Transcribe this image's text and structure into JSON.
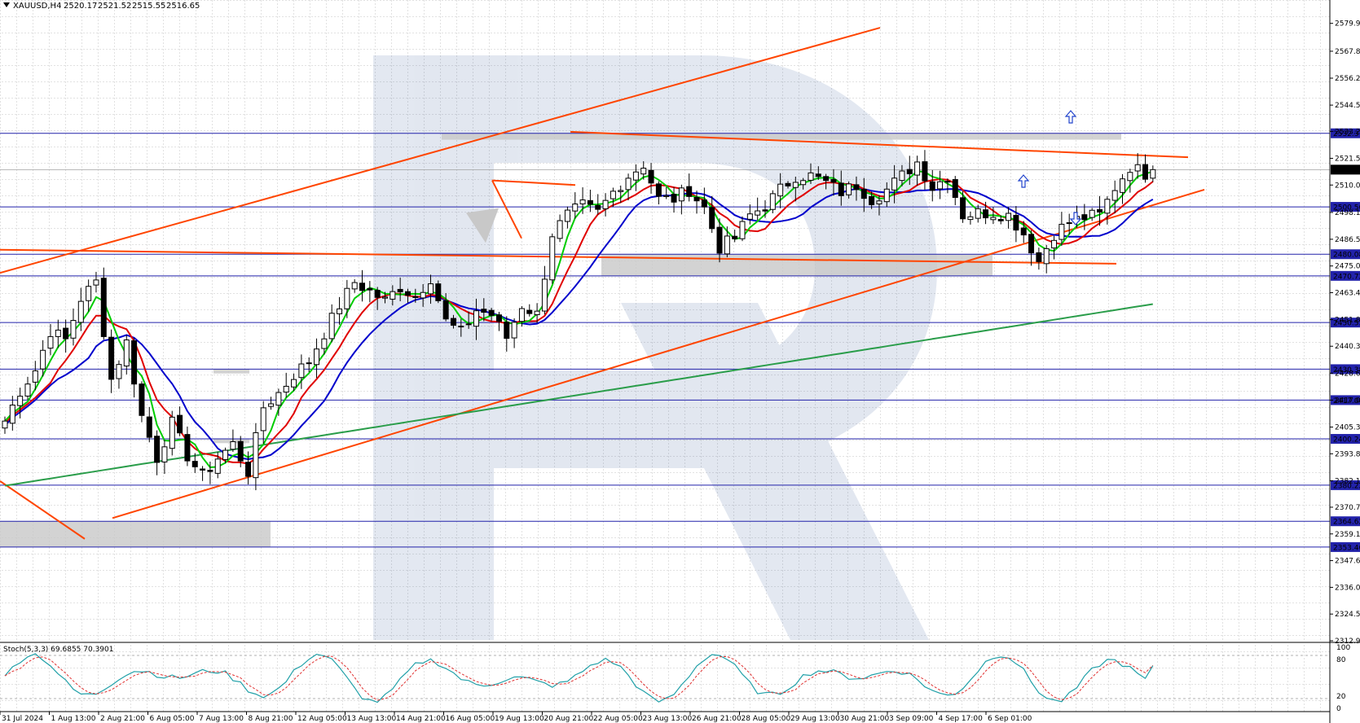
{
  "header": {
    "symbol": "XAUUSD,H4",
    "open": "2520.17",
    "high": "2521.52",
    "low": "2515.55",
    "close": "2516.65"
  },
  "stoch": {
    "label": "Stoch(5,3,3) 69.6855 70.3901",
    "axis_labels": [
      "100",
      "80",
      "20",
      "0"
    ]
  },
  "colors": {
    "candle": "#000000",
    "ma_fast": "#00cc00",
    "ma_mid": "#e00000",
    "ma_slow": "#0000cc",
    "ma_long": "#2a9d4a",
    "trend": "#ff4500",
    "level": "#2222aa",
    "zone": "#c8c8c8",
    "current": "#000000",
    "stoch_main": "#20a0a8",
    "stoch_signal": "#e03030"
  },
  "chart_data": {
    "type": "candlestick",
    "ylim": [
      2312.95,
      2590.0
    ],
    "y_ticks": [
      "2579.90",
      "2567.85",
      "2556.20",
      "2544.55",
      "2533.20",
      "2521.55",
      "2510.00",
      "2498.15",
      "2486.55",
      "2475.00",
      "2463.45",
      "2451.80",
      "2440.30",
      "2428.65",
      "2417.00",
      "2405.35",
      "2393.80",
      "2382.15",
      "2370.70",
      "2359.15",
      "2347.60",
      "2336.05",
      "2324.50",
      "2312.95"
    ],
    "x_ticks": [
      "31 Jul 2024",
      "1 Aug 13:00",
      "2 Aug 21:00",
      "6 Aug 05:00",
      "7 Aug 13:00",
      "8 Aug 21:00",
      "12 Aug 05:00",
      "13 Aug 13:00",
      "14 Aug 21:00",
      "16 Aug 05:00",
      "19 Aug 13:00",
      "20 Aug 21:00",
      "22 Aug 05:00",
      "23 Aug 13:00",
      "26 Aug 21:00",
      "28 Aug 05:00",
      "29 Aug 13:00",
      "30 Aug 21:00",
      "3 Sep 09:00",
      "4 Sep 17:00",
      "6 Sep 01:00"
    ],
    "levels": [
      {
        "label": "2532.37",
        "value": 2532.37
      },
      {
        "label": "2500.56",
        "value": 2500.56
      },
      {
        "label": "2480.08",
        "value": 2480.08
      },
      {
        "label": "2470.72",
        "value": 2470.72
      },
      {
        "label": "2450.53",
        "value": 2450.53
      },
      {
        "label": "2430.38",
        "value": 2430.38
      },
      {
        "label": "2417.00",
        "value": 2417.0
      },
      {
        "label": "2400.24",
        "value": 2400.24
      },
      {
        "label": "2380.22",
        "value": 2380.22
      },
      {
        "label": "2364.62",
        "value": 2364.62
      },
      {
        "label": "2353.46",
        "value": 2353.46
      }
    ],
    "current_price": {
      "label": "2516.65",
      "value": 2516.65
    },
    "close_anchors": [
      [
        0,
        2408
      ],
      [
        2,
        2421
      ],
      [
        4,
        2430
      ],
      [
        6,
        2447
      ],
      [
        8,
        2443
      ],
      [
        10,
        2461
      ],
      [
        12,
        2468
      ],
      [
        14,
        2426
      ],
      [
        16,
        2442
      ],
      [
        18,
        2410
      ],
      [
        20,
        2392
      ],
      [
        22,
        2407
      ],
      [
        24,
        2393
      ],
      [
        26,
        2384
      ],
      [
        28,
        2392
      ],
      [
        30,
        2398
      ],
      [
        32,
        2386
      ],
      [
        34,
        2414
      ],
      [
        36,
        2420
      ],
      [
        38,
        2428
      ],
      [
        40,
        2434
      ],
      [
        42,
        2446
      ],
      [
        44,
        2458
      ],
      [
        46,
        2468
      ],
      [
        48,
        2464
      ],
      [
        50,
        2460
      ],
      [
        52,
        2466
      ],
      [
        54,
        2462
      ],
      [
        56,
        2470
      ],
      [
        58,
        2451
      ],
      [
        60,
        2446
      ],
      [
        62,
        2456
      ],
      [
        64,
        2454
      ],
      [
        66,
        2444
      ],
      [
        68,
        2458
      ],
      [
        70,
        2454
      ],
      [
        72,
        2489
      ],
      [
        74,
        2497
      ],
      [
        76,
        2501
      ],
      [
        78,
        2498
      ],
      [
        80,
        2507
      ],
      [
        82,
        2514
      ],
      [
        84,
        2519
      ],
      [
        86,
        2504
      ],
      [
        88,
        2504
      ],
      [
        90,
        2508
      ],
      [
        92,
        2500
      ],
      [
        94,
        2483
      ],
      [
        96,
        2487
      ],
      [
        98,
        2497
      ],
      [
        100,
        2501
      ],
      [
        102,
        2508
      ],
      [
        104,
        2514
      ],
      [
        106,
        2514
      ],
      [
        108,
        2511
      ],
      [
        110,
        2507
      ],
      [
        112,
        2510
      ],
      [
        114,
        2504
      ],
      [
        116,
        2508
      ],
      [
        118,
        2514
      ],
      [
        120,
        2520
      ],
      [
        122,
        2509
      ],
      [
        124,
        2514
      ],
      [
        126,
        2497
      ],
      [
        128,
        2498
      ],
      [
        130,
        2498
      ],
      [
        132,
        2497
      ],
      [
        134,
        2489
      ],
      [
        136,
        2477
      ],
      [
        138,
        2489
      ],
      [
        140,
        2494
      ],
      [
        142,
        2496
      ],
      [
        144,
        2497
      ],
      [
        146,
        2509
      ],
      [
        148,
        2518
      ],
      [
        150,
        2515
      ],
      [
        151,
        2516.65
      ]
    ]
  }
}
